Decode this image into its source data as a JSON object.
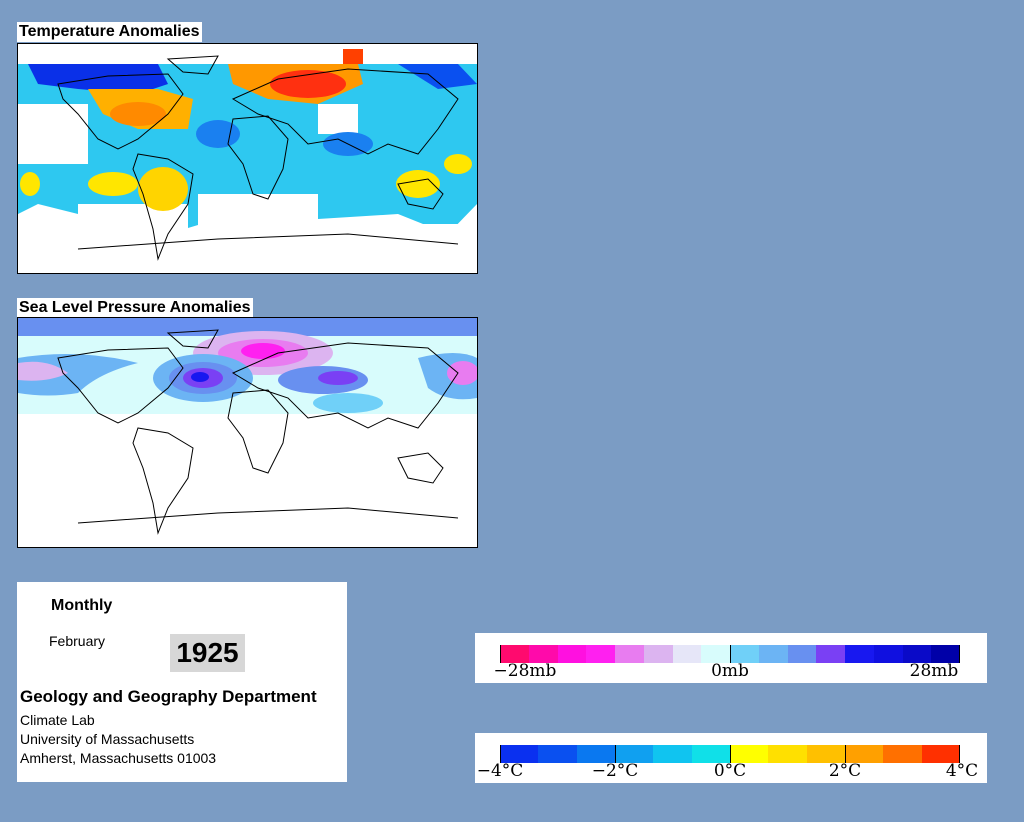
{
  "temp_map": {
    "title": "Temperature Anomalies"
  },
  "slp_map": {
    "title": "Sea Level Pressure Anomalies"
  },
  "info": {
    "frequency": "Monthly",
    "month": "February",
    "year": "1925",
    "department": "Geology and Geography Department",
    "lab": "Climate Lab",
    "university": "University of Massachusetts",
    "address": "Amherst, Massachusetts 01003"
  },
  "pressure_legend": {
    "labels": [
      "−28mb",
      "0mb",
      "28mb"
    ],
    "colors": [
      "#ff0a6e",
      "#ff0aaa",
      "#ff10e0",
      "#ff20f0",
      "#e87cf0",
      "#dcb4f0",
      "#e6e6f8",
      "#d8fcfc",
      "#70d0f8",
      "#6cb4f4",
      "#6890f0",
      "#7a40f4",
      "#1818f0",
      "#1010e0",
      "#0a0ac8",
      "#0000a8"
    ]
  },
  "temp_legend": {
    "labels": [
      "−4°C",
      "−2°C",
      "0°C",
      "2°C",
      "4°C"
    ],
    "colors": [
      "#0a30f0",
      "#0a50f0",
      "#0a78f0",
      "#10a0f0",
      "#10c4f0",
      "#10e0e8",
      "#ffff00",
      "#ffe000",
      "#ffc000",
      "#ffa000",
      "#ff7000",
      "#ff3000"
    ]
  }
}
